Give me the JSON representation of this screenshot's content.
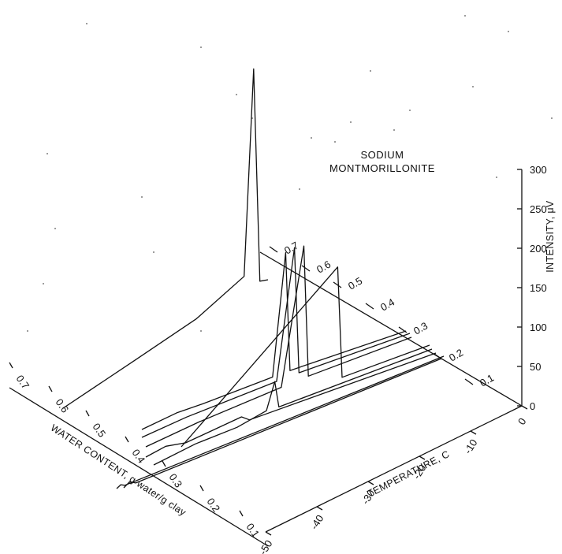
{
  "chart_data": {
    "type": "line",
    "chart_kind": "3d-waterfall",
    "title": "SODIUM\nMONTMORILLONITE",
    "title_lines": [
      "SODIUM",
      "MONTMORILLONITE"
    ],
    "x_axis": {
      "label": "TEMPERATURE, C",
      "ticks": [
        "-50",
        "-40",
        "-30",
        "-20",
        "-10",
        "0"
      ],
      "range": [
        -50,
        0
      ]
    },
    "y_axis": {
      "label": "INTENSITY, μV",
      "ticks": [
        "0",
        "50",
        "100",
        "150",
        "200",
        "250",
        "300"
      ],
      "range": [
        0,
        300
      ]
    },
    "z_axis": {
      "label": "WATER CONTENT, g water/g clay",
      "ticks": [
        "0.1",
        "0.2",
        "0.3",
        "0.4",
        "0.5",
        "0.6",
        "0.7"
      ],
      "range": [
        0.1,
        0.7
      ]
    },
    "series": [
      {
        "water_content": 0.15,
        "peak_temp": -48,
        "peak_intensity": 3,
        "values": [
          [
            -50,
            0
          ],
          [
            -48,
            3
          ],
          [
            -46,
            0
          ],
          [
            0,
            0
          ]
        ]
      },
      {
        "water_content": 0.2,
        "peak_temp": -47,
        "peak_intensity": 5,
        "values": [
          [
            -50,
            0
          ],
          [
            -47,
            5
          ],
          [
            -44,
            0
          ],
          [
            0,
            0
          ]
        ]
      },
      {
        "water_content": 0.27,
        "peak_temp": -26,
        "peak_intensity": 8,
        "values": [
          [
            -50,
            0
          ],
          [
            -45,
            5
          ],
          [
            -40,
            0
          ],
          [
            -26,
            8
          ],
          [
            -24,
            0
          ],
          [
            0,
            0
          ]
        ]
      },
      {
        "water_content": 0.32,
        "peak_temp": -21,
        "peak_intensity": 45,
        "values": [
          [
            -50,
            0
          ],
          [
            -40,
            5
          ],
          [
            -30,
            4
          ],
          [
            -23,
            10
          ],
          [
            -21,
            45
          ],
          [
            -20,
            8
          ],
          [
            0,
            0
          ]
        ]
      },
      {
        "water_content": 0.4,
        "peak_temp": -17,
        "peak_intensity": 168,
        "values": [
          [
            -50,
            0
          ],
          [
            -42,
            5
          ],
          [
            -36,
            4
          ],
          [
            -20,
            5
          ],
          [
            -17,
            168
          ],
          [
            -16,
            5
          ],
          [
            0,
            0
          ]
        ]
      },
      {
        "water_content": 0.43,
        "peak_temp": -16,
        "peak_intensity": 178,
        "values": [
          [
            -50,
            0
          ],
          [
            -40,
            4
          ],
          [
            -20,
            5
          ],
          [
            -16,
            178
          ],
          [
            -15,
            5
          ],
          [
            0,
            0
          ]
        ]
      },
      {
        "water_content": 0.48,
        "peak_temp": -15,
        "peak_intensity": 185,
        "values": [
          [
            -50,
            0
          ],
          [
            -38,
            4
          ],
          [
            -20,
            5
          ],
          [
            -15,
            185
          ],
          [
            -14,
            5
          ],
          [
            0,
            0
          ]
        ]
      },
      {
        "water_content": 0.53,
        "peak_temp": -14,
        "peak_intensity": 158,
        "values": [
          [
            -50,
            0
          ],
          [
            -14,
            158
          ],
          [
            -13,
            5
          ],
          [
            0,
            0
          ]
        ]
      },
      {
        "water_content": 0.7,
        "peak_temp": -10,
        "peak_intensity": 300,
        "values": [
          [
            -50,
            0
          ],
          [
            -35,
            4
          ],
          [
            -22,
            8
          ],
          [
            -12,
            25
          ],
          [
            -10,
            300
          ],
          [
            -9,
            5
          ],
          [
            0,
            0
          ]
        ]
      }
    ]
  }
}
